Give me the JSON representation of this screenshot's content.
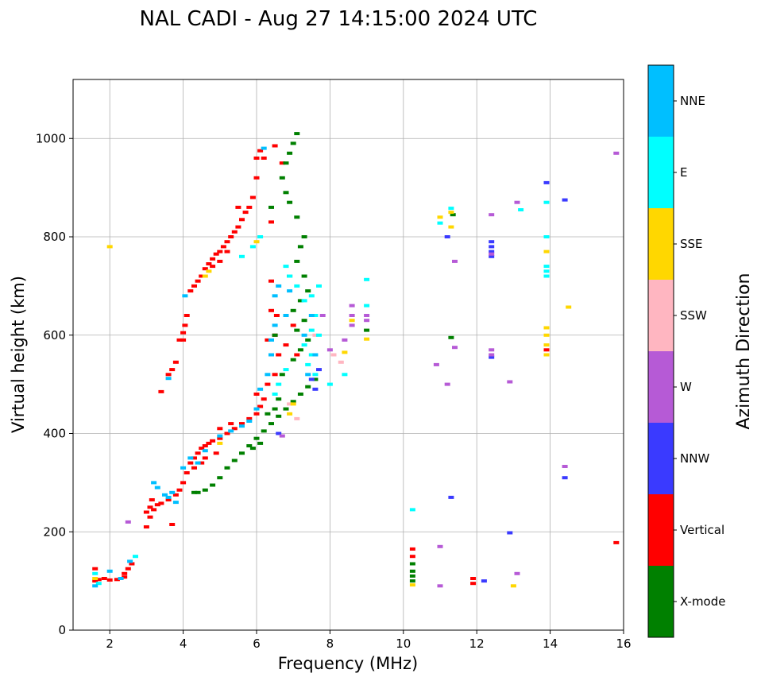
{
  "chart_data": {
    "type": "scatter",
    "title": "NAL CADI - Aug 27 14:15:00 2024 UTC",
    "xlabel": "Frequency (MHz)",
    "ylabel": "Virtual height (km)",
    "xlim": [
      1,
      16
    ],
    "ylim": [
      0,
      1120
    ],
    "xticks": [
      2,
      4,
      6,
      8,
      10,
      12,
      14,
      16
    ],
    "yticks": [
      0,
      200,
      400,
      600,
      800,
      1000
    ],
    "grid": true,
    "colorbar": {
      "title": "Azimuth Direction",
      "categories": [
        {
          "name": "X-mode",
          "color": "#008000"
        },
        {
          "name": "Vertical",
          "color": "#ff0000"
        },
        {
          "name": "NNW",
          "color": "#3a3aff"
        },
        {
          "name": "W",
          "color": "#b65ad6"
        },
        {
          "name": "SSW",
          "color": "#ffb6c1"
        },
        {
          "name": "SSE",
          "color": "#ffd700"
        },
        {
          "name": "E",
          "color": "#00ffff"
        },
        {
          "name": "NNE",
          "color": "#00bfff"
        }
      ]
    },
    "series": [
      {
        "name": "Vertical",
        "color": "#ff0000",
        "points": [
          [
            1.6,
            100
          ],
          [
            1.7,
            103
          ],
          [
            1.85,
            105
          ],
          [
            2.0,
            102
          ],
          [
            2.2,
            103
          ],
          [
            2.4,
            108
          ],
          [
            2.5,
            125
          ],
          [
            2.6,
            135
          ],
          [
            2.4,
            115
          ],
          [
            1.6,
            125
          ],
          [
            3.0,
            240
          ],
          [
            3.1,
            250
          ],
          [
            3.2,
            245
          ],
          [
            3.3,
            255
          ],
          [
            3.4,
            258
          ],
          [
            3.6,
            265
          ],
          [
            3.8,
            275
          ],
          [
            3.9,
            285
          ],
          [
            4.0,
            300
          ],
          [
            4.1,
            320
          ],
          [
            4.2,
            340
          ],
          [
            4.3,
            350
          ],
          [
            4.4,
            360
          ],
          [
            4.5,
            370
          ],
          [
            4.6,
            375
          ],
          [
            4.7,
            380
          ],
          [
            4.8,
            385
          ],
          [
            5.0,
            390
          ],
          [
            5.2,
            400
          ],
          [
            5.4,
            410
          ],
          [
            5.6,
            420
          ],
          [
            5.8,
            430
          ],
          [
            6.0,
            440
          ],
          [
            6.1,
            455
          ],
          [
            6.2,
            470
          ],
          [
            6.0,
            480
          ],
          [
            4.5,
            340
          ],
          [
            4.3,
            330
          ],
          [
            3.7,
            215
          ],
          [
            3.1,
            230
          ],
          [
            3.0,
            210
          ],
          [
            3.15,
            265
          ],
          [
            4.0,
            590
          ],
          [
            4.0,
            605
          ],
          [
            4.05,
            620
          ],
          [
            4.1,
            640
          ],
          [
            3.7,
            530
          ],
          [
            3.6,
            520
          ],
          [
            3.8,
            545
          ],
          [
            3.9,
            590
          ],
          [
            4.2,
            690
          ],
          [
            4.3,
            700
          ],
          [
            4.4,
            710
          ],
          [
            4.5,
            720
          ],
          [
            4.6,
            735
          ],
          [
            4.7,
            745
          ],
          [
            4.8,
            755
          ],
          [
            4.9,
            765
          ],
          [
            5.0,
            770
          ],
          [
            5.1,
            780
          ],
          [
            5.2,
            790
          ],
          [
            5.3,
            800
          ],
          [
            5.4,
            810
          ],
          [
            5.5,
            820
          ],
          [
            5.6,
            835
          ],
          [
            5.7,
            850
          ],
          [
            5.8,
            860
          ],
          [
            5.9,
            880
          ],
          [
            6.0,
            920
          ],
          [
            6.0,
            960
          ],
          [
            6.1,
            975
          ],
          [
            5.5,
            860
          ],
          [
            5.0,
            750
          ],
          [
            4.8,
            740
          ],
          [
            5.2,
            770
          ],
          [
            6.4,
            710
          ],
          [
            6.4,
            650
          ],
          [
            6.5,
            600
          ],
          [
            6.3,
            590
          ],
          [
            6.6,
            560
          ],
          [
            6.5,
            520
          ],
          [
            6.3,
            500
          ],
          [
            6.8,
            580
          ],
          [
            6.5,
            985
          ],
          [
            6.7,
            950
          ],
          [
            6.4,
            830
          ],
          [
            6.2,
            960
          ],
          [
            5.3,
            420
          ],
          [
            5.0,
            410
          ],
          [
            4.9,
            360
          ],
          [
            4.6,
            350
          ],
          [
            3.4,
            485
          ],
          [
            6.55,
            640
          ],
          [
            10.25,
            165
          ],
          [
            10.25,
            150
          ],
          [
            11.9,
            105
          ],
          [
            11.9,
            95
          ],
          [
            13.9,
            570
          ],
          [
            15.8,
            178
          ],
          [
            7.0,
            620
          ],
          [
            7.1,
            560
          ]
        ]
      },
      {
        "name": "X-mode",
        "color": "#008000",
        "points": [
          [
            4.3,
            280
          ],
          [
            4.4,
            280
          ],
          [
            4.6,
            285
          ],
          [
            4.8,
            295
          ],
          [
            5.0,
            310
          ],
          [
            5.2,
            330
          ],
          [
            5.4,
            345
          ],
          [
            5.6,
            360
          ],
          [
            5.8,
            375
          ],
          [
            6.0,
            390
          ],
          [
            6.2,
            405
          ],
          [
            6.4,
            420
          ],
          [
            6.6,
            435
          ],
          [
            6.8,
            450
          ],
          [
            7.0,
            465
          ],
          [
            7.2,
            480
          ],
          [
            7.4,
            495
          ],
          [
            7.6,
            510
          ],
          [
            7.0,
            550
          ],
          [
            7.2,
            570
          ],
          [
            7.4,
            590
          ],
          [
            7.1,
            610
          ],
          [
            7.3,
            630
          ],
          [
            7.0,
            650
          ],
          [
            7.2,
            670
          ],
          [
            7.4,
            690
          ],
          [
            6.9,
            720
          ],
          [
            7.1,
            750
          ],
          [
            7.2,
            780
          ],
          [
            7.3,
            800
          ],
          [
            7.1,
            840
          ],
          [
            6.9,
            870
          ],
          [
            6.8,
            890
          ],
          [
            6.7,
            920
          ],
          [
            6.8,
            950
          ],
          [
            6.9,
            970
          ],
          [
            7.0,
            990
          ],
          [
            7.1,
            1010
          ],
          [
            6.5,
            450
          ],
          [
            6.3,
            440
          ],
          [
            6.6,
            470
          ],
          [
            6.7,
            520
          ],
          [
            6.4,
            860
          ],
          [
            7.3,
            720
          ],
          [
            6.5,
            600
          ],
          [
            5.9,
            370
          ],
          [
            6.1,
            380
          ],
          [
            10.25,
            100
          ],
          [
            10.25,
            110
          ],
          [
            10.25,
            120
          ],
          [
            10.25,
            135
          ],
          [
            11.3,
            595
          ],
          [
            11.35,
            845
          ],
          [
            9.0,
            610
          ]
        ]
      },
      {
        "name": "NNW",
        "color": "#3a3aff",
        "points": [
          [
            12.4,
            790
          ],
          [
            12.4,
            780
          ],
          [
            12.4,
            770
          ],
          [
            12.4,
            760
          ],
          [
            12.4,
            555
          ],
          [
            13.9,
            910
          ],
          [
            14.4,
            875
          ],
          [
            14.4,
            310
          ],
          [
            11.3,
            270
          ],
          [
            12.2,
            100
          ],
          [
            12.9,
            198
          ],
          [
            7.5,
            510
          ],
          [
            7.6,
            490
          ],
          [
            6.6,
            400
          ],
          [
            7.7,
            530
          ],
          [
            11.2,
            800
          ]
        ]
      },
      {
        "name": "W",
        "color": "#b65ad6",
        "points": [
          [
            12.4,
            845
          ],
          [
            12.4,
            765
          ],
          [
            12.4,
            570
          ],
          [
            12.4,
            560
          ],
          [
            8.4,
            590
          ],
          [
            8.6,
            620
          ],
          [
            8.6,
            640
          ],
          [
            8.6,
            660
          ],
          [
            9.0,
            630
          ],
          [
            9.0,
            640
          ],
          [
            10.9,
            540
          ],
          [
            11.0,
            170
          ],
          [
            11.0,
            90
          ],
          [
            11.2,
            500
          ],
          [
            11.4,
            575
          ],
          [
            11.4,
            750
          ],
          [
            12.9,
            505
          ],
          [
            13.1,
            870
          ],
          [
            13.1,
            115
          ],
          [
            14.4,
            333
          ],
          [
            15.8,
            970
          ],
          [
            6.7,
            395
          ],
          [
            7.8,
            640
          ],
          [
            8.0,
            570
          ],
          [
            2.5,
            220
          ]
        ]
      },
      {
        "name": "SSW",
        "color": "#ffb6c1",
        "points": [
          [
            7.6,
            600
          ],
          [
            6.9,
            460
          ],
          [
            7.1,
            430
          ],
          [
            8.1,
            560
          ],
          [
            8.3,
            545
          ]
        ]
      },
      {
        "name": "SSE",
        "color": "#ffd700",
        "points": [
          [
            13.9,
            600
          ],
          [
            13.9,
            580
          ],
          [
            13.9,
            560
          ],
          [
            13.9,
            615
          ],
          [
            13.9,
            770
          ],
          [
            14.5,
            657
          ],
          [
            13.0,
            90
          ],
          [
            11.0,
            840
          ],
          [
            11.3,
            820
          ],
          [
            11.3,
            850
          ],
          [
            8.4,
            565
          ],
          [
            8.6,
            630
          ],
          [
            9.0,
            592
          ],
          [
            10.25,
            92
          ],
          [
            4.6,
            720
          ],
          [
            4.7,
            730
          ],
          [
            6.0,
            790
          ],
          [
            6.9,
            440
          ],
          [
            7.0,
            460
          ],
          [
            5.0,
            380
          ],
          [
            1.6,
            105
          ],
          [
            2.0,
            780
          ]
        ]
      },
      {
        "name": "E",
        "color": "#00ffff",
        "points": [
          [
            13.9,
            740
          ],
          [
            13.9,
            730
          ],
          [
            13.9,
            720
          ],
          [
            13.9,
            800
          ],
          [
            13.9,
            870
          ],
          [
            13.2,
            855
          ],
          [
            11.3,
            858
          ],
          [
            11.0,
            828
          ],
          [
            10.25,
            245
          ],
          [
            7.6,
            520
          ],
          [
            7.4,
            540
          ],
          [
            7.5,
            560
          ],
          [
            7.3,
            580
          ],
          [
            7.5,
            610
          ],
          [
            7.6,
            640
          ],
          [
            7.5,
            680
          ],
          [
            7.7,
            700
          ],
          [
            7.3,
            670
          ],
          [
            7.1,
            700
          ],
          [
            6.8,
            740
          ],
          [
            6.9,
            720
          ],
          [
            8.0,
            500
          ],
          [
            8.4,
            520
          ],
          [
            9.0,
            713
          ],
          [
            9.0,
            660
          ],
          [
            6.5,
            480
          ],
          [
            6.6,
            500
          ],
          [
            6.8,
            530
          ],
          [
            5.6,
            760
          ],
          [
            5.9,
            780
          ],
          [
            6.1,
            800
          ],
          [
            7.7,
            600
          ],
          [
            1.7,
            95
          ],
          [
            2.7,
            150
          ],
          [
            1.6,
            115
          ]
        ]
      },
      {
        "name": "NNE",
        "color": "#00bfff",
        "points": [
          [
            3.2,
            300
          ],
          [
            3.3,
            290
          ],
          [
            3.5,
            275
          ],
          [
            3.6,
            270
          ],
          [
            3.7,
            280
          ],
          [
            3.8,
            260
          ],
          [
            4.0,
            330
          ],
          [
            4.2,
            350
          ],
          [
            4.4,
            340
          ],
          [
            4.6,
            365
          ],
          [
            5.0,
            395
          ],
          [
            5.3,
            405
          ],
          [
            5.6,
            415
          ],
          [
            5.8,
            425
          ],
          [
            6.0,
            450
          ],
          [
            6.1,
            490
          ],
          [
            6.3,
            520
          ],
          [
            6.4,
            560
          ],
          [
            6.5,
            620
          ],
          [
            6.5,
            680
          ],
          [
            6.8,
            640
          ],
          [
            7.3,
            600
          ],
          [
            7.5,
            640
          ],
          [
            7.6,
            560
          ],
          [
            7.4,
            520
          ],
          [
            6.6,
            700
          ],
          [
            6.9,
            690
          ],
          [
            6.4,
            590
          ],
          [
            3.6,
            512
          ],
          [
            4.05,
            680
          ],
          [
            6.2,
            980
          ],
          [
            2.0,
            120
          ],
          [
            1.6,
            90
          ],
          [
            2.3,
            105
          ],
          [
            2.55,
            140
          ]
        ]
      }
    ]
  }
}
